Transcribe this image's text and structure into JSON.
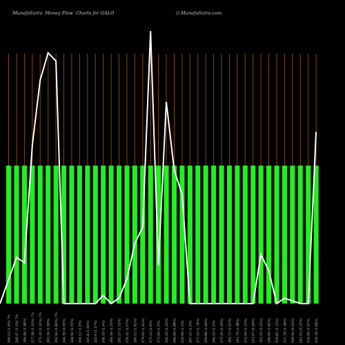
{
  "header": {
    "left": "MunafaSutra  Money Flow  Charts for GALO",
    "right": "() MunafaSutra.com"
  },
  "colors": {
    "background": "#000000",
    "bar": "#22ee22",
    "grid": "#8a4b00",
    "line": "#ffffff",
    "label": "#bbbbbb"
  },
  "chart_data": {
    "type": "bar",
    "title": "MunafaSutra  Money Flow  Charts for GALO",
    "grid": true,
    "ylim": [
      0,
      1
    ],
    "categories": [
      "269.13 (1.9%) 7%",
      "266.47 (1.1%) 7%",
      "286.96 (1.98%)",
      "277.38 (1.33%) 7%",
      "271.34 (1.31%) 7%",
      "262.36 (1.99%)",
      "262.94 (1.86%) 7%",
      "244.39 (0.95%)",
      "248.91 (1.55%)",
      "244.12 (1.9%)",
      "245.8 (1.56%)",
      "222.9 (1.17%)",
      "248.16 (1.6%)",
      "294.49 (1.23%)",
      "291.27 (1.53%)",
      "278.32 (1.07%)",
      "290.11 (1.81%)",
      "279.04 (1.41%)",
      "275.12 (2.9%)",
      "273.94 (1.3%)",
      "266.26 (1.24%)",
      "266.99 (1.88%)",
      "229.99 (1.3%)",
      "267.23 (1.2%)",
      "277.52 (1.78%)",
      "269.88 (1.66%)",
      "266.42 (1.1%)",
      "275.45 (1.39%)",
      "282.72 (2.21%)",
      "261.79 (1.08%)",
      "252.64 (1.12%)",
      "253.07 (0.26%)",
      "301.22 (1.22%)",
      "296.69 (1.82%)",
      "259.85 (1.13%)",
      "237.78 (1.38%)",
      "200.91 (0.24%)",
      "261.01 (0.12%)",
      "216.08 (1.07%)",
      "236.39 (1.68%)"
    ],
    "series": [
      {
        "type": "bar",
        "values": [
          1,
          1,
          1,
          1,
          1,
          1,
          1,
          1,
          1,
          1,
          1,
          1,
          1,
          1,
          1,
          1,
          1,
          1,
          1,
          1,
          1,
          1,
          1,
          1,
          1,
          1,
          1,
          1,
          1,
          1,
          1,
          1,
          1,
          1,
          1,
          1,
          1,
          1,
          1,
          1
        ]
      },
      {
        "type": "line",
        "values": [
          0.0,
          0.17,
          0.15,
          0.58,
          0.82,
          0.92,
          0.89,
          0.0,
          0.0,
          0.0,
          0.0,
          0.0,
          0.03,
          0.0,
          0.02,
          0.09,
          0.22,
          0.28,
          1.0,
          0.14,
          0.74,
          0.49,
          0.4,
          0.0,
          0.0,
          0.0,
          0.0,
          0.0,
          0.0,
          0.0,
          0.0,
          0.0,
          0.18,
          0.12,
          0.0,
          0.02,
          0.01,
          0.0,
          0.0,
          0.63
        ]
      }
    ]
  }
}
